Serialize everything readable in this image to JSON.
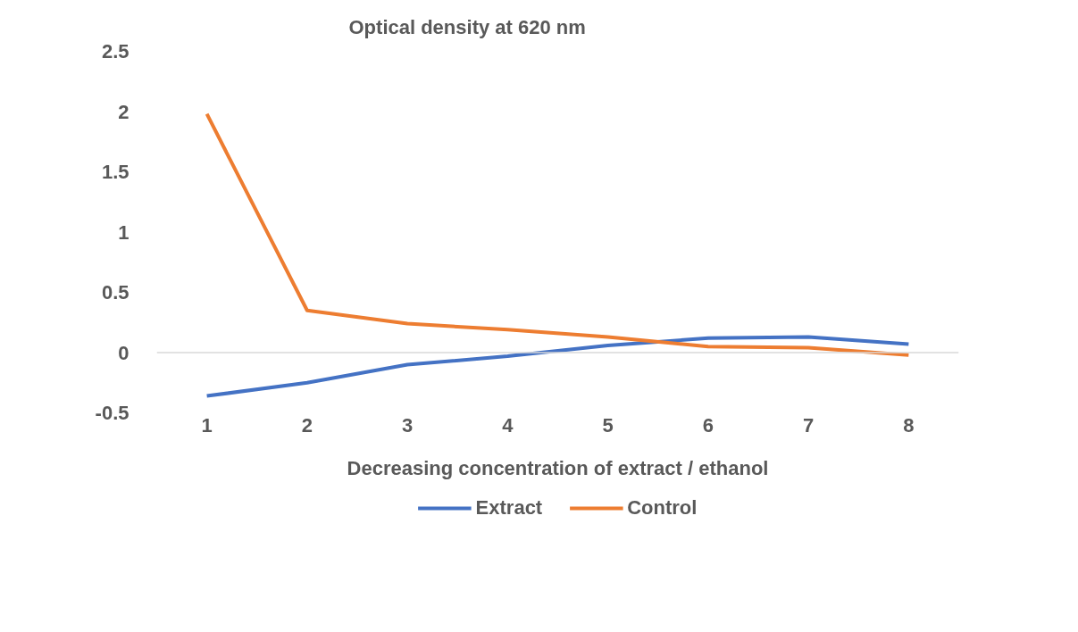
{
  "chart_data": {
    "type": "line",
    "ylabel": "Optical density at 620 nm",
    "xlabel": "Decreasing concentration of extract / ethanol",
    "categories": [
      "1",
      "2",
      "3",
      "4",
      "5",
      "6",
      "7",
      "8"
    ],
    "series": [
      {
        "name": "Extract",
        "color": "#4472c4",
        "values": [
          -0.36,
          -0.25,
          -0.1,
          -0.03,
          0.06,
          0.12,
          0.13,
          0.07
        ]
      },
      {
        "name": "Control",
        "color": "#ed7d31",
        "values": [
          1.98,
          0.35,
          0.24,
          0.19,
          0.13,
          0.05,
          0.04,
          -0.02
        ]
      }
    ],
    "ref_lines": [
      {
        "axis": "y",
        "value": 0,
        "color": "#d9d9d9"
      }
    ],
    "ylim": [
      -0.5,
      2.5
    ],
    "yticks": [
      -0.5,
      0,
      0.5,
      1,
      1.5,
      2,
      2.5
    ],
    "grid": false,
    "legend": "bottom",
    "marker": "none",
    "line_style": "solid"
  }
}
